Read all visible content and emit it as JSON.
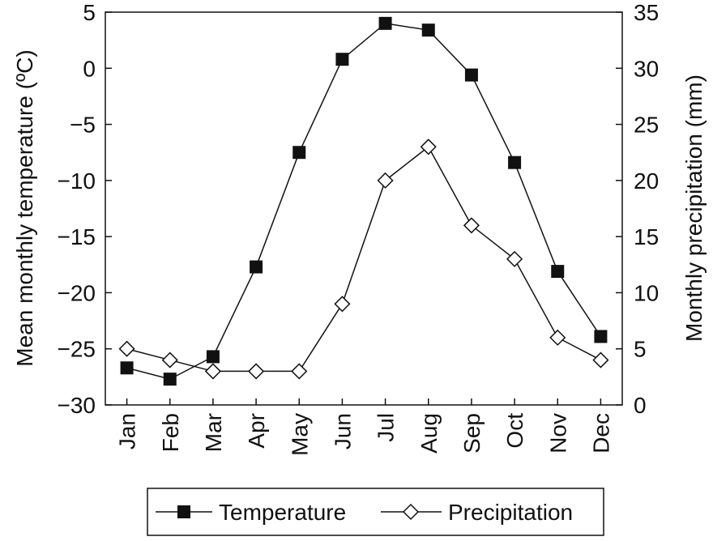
{
  "chart_data": {
    "type": "line",
    "categories": [
      "Jan",
      "Feb",
      "Mar",
      "Apr",
      "May",
      "Jun",
      "Jul",
      "Aug",
      "Sep",
      "Oct",
      "Nov",
      "Dec"
    ],
    "series": [
      {
        "name": "Temperature",
        "axis": "left",
        "marker": "filled-square",
        "values": [
          -26.7,
          -27.7,
          -25.7,
          -17.7,
          -7.5,
          0.8,
          4.0,
          3.4,
          -0.6,
          -8.4,
          -18.1,
          -23.9
        ]
      },
      {
        "name": "Precipitation",
        "axis": "right",
        "marker": "open-diamond",
        "values": [
          5,
          4,
          3,
          3,
          3,
          9,
          20,
          23,
          16,
          13,
          6,
          4
        ]
      }
    ],
    "ylabel": "Mean monthly temperature (ºC)",
    "y2label": "Monthly precipitation (mm)",
    "ylim": [
      -30,
      5
    ],
    "y2lim": [
      0,
      35
    ],
    "yticks": [
      "5",
      "0",
      "−5",
      "−10",
      "−15",
      "−20",
      "−25",
      "−30"
    ],
    "y2ticks": [
      "35",
      "30",
      "25",
      "20",
      "15",
      "10",
      "5",
      "0"
    ],
    "grid": false,
    "legend_placement": "bottom",
    "colors": {
      "line": "#111111"
    }
  }
}
